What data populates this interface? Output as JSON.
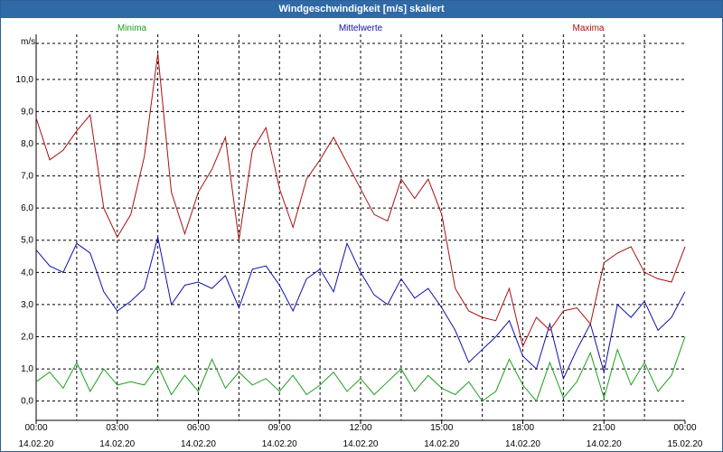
{
  "window": {
    "title": "Windgeschwindigkeit [m/s] skaliert"
  },
  "colors": {
    "min": "#1fa01f",
    "mean": "#1010a8",
    "max": "#a81010",
    "grid": "#000000",
    "title_bg": "#2f6aa6"
  },
  "chart_data": {
    "type": "line",
    "title": "Windgeschwindigkeit [m/s] skaliert",
    "ylabel": "m/s",
    "xlabel": "",
    "ylim": [
      -0.6,
      11.4
    ],
    "xlim": [
      0,
      24
    ],
    "y_ticks": [
      0,
      1,
      2,
      3,
      4,
      5,
      6,
      7,
      8,
      9,
      10
    ],
    "y_tick_labels": [
      "0,0",
      "1,0",
      "2,0",
      "3,0",
      "4,0",
      "5,0",
      "6,0",
      "7,0",
      "8,0",
      "9,0",
      "10,0"
    ],
    "x_ticks": [
      0,
      3,
      6,
      9,
      12,
      15,
      18,
      21,
      24
    ],
    "x_tick_times": [
      "00:00",
      "03:00",
      "06:00",
      "09:00",
      "12:00",
      "15:00",
      "18:00",
      "21:00",
      "00:00"
    ],
    "x_tick_dates": [
      "14.02.20",
      "14.02.20",
      "14.02.20",
      "14.02.20",
      "14.02.20",
      "14.02.20",
      "14.02.20",
      "14.02.20",
      "15.02.20"
    ],
    "grid": true,
    "legend_position": "top",
    "series": [
      {
        "name": "Minima",
        "color": "#1fa01f",
        "x": [
          0,
          0.5,
          1,
          1.5,
          2,
          2.5,
          3,
          3.5,
          4,
          4.5,
          5,
          5.5,
          6,
          6.5,
          7,
          7.5,
          8,
          8.5,
          9,
          9.5,
          10,
          10.5,
          11,
          11.5,
          12,
          12.5,
          13,
          13.5,
          14,
          14.5,
          15,
          15.5,
          16,
          16.5,
          17,
          17.5,
          18,
          18.5,
          19,
          19.5,
          20,
          20.5,
          21,
          21.5,
          22,
          22.5,
          23,
          23.5,
          24
        ],
        "values": [
          0.6,
          0.9,
          0.4,
          1.2,
          0.3,
          1.0,
          0.5,
          0.6,
          0.5,
          1.1,
          0.2,
          0.8,
          0.3,
          1.3,
          0.4,
          0.9,
          0.5,
          0.7,
          0.3,
          0.8,
          0.2,
          0.5,
          0.9,
          0.3,
          0.7,
          0.2,
          0.6,
          1.0,
          0.3,
          0.8,
          0.4,
          0.2,
          0.6,
          0.0,
          0.3,
          1.3,
          0.5,
          0.0,
          1.2,
          0.1,
          0.6,
          1.5,
          0.1,
          1.6,
          0.5,
          1.2,
          0.3,
          0.8,
          2.0
        ]
      },
      {
        "name": "Mittelwerte",
        "color": "#1010a8",
        "x": [
          0,
          0.5,
          1,
          1.5,
          2,
          2.5,
          3,
          3.5,
          4,
          4.5,
          5,
          5.5,
          6,
          6.5,
          7,
          7.5,
          8,
          8.5,
          9,
          9.5,
          10,
          10.5,
          11,
          11.5,
          12,
          12.5,
          13,
          13.5,
          14,
          14.5,
          15,
          15.5,
          16,
          16.5,
          17,
          17.5,
          18,
          18.5,
          19,
          19.5,
          20,
          20.5,
          21,
          21.5,
          22,
          22.5,
          23,
          23.5,
          24
        ],
        "values": [
          4.7,
          4.2,
          4.0,
          4.9,
          4.6,
          3.4,
          2.8,
          3.1,
          3.5,
          5.1,
          3.0,
          3.6,
          3.7,
          3.5,
          3.9,
          2.9,
          4.1,
          4.2,
          3.6,
          2.8,
          3.8,
          4.1,
          3.4,
          4.9,
          4.0,
          3.3,
          3.0,
          3.8,
          3.2,
          3.5,
          2.9,
          2.2,
          1.2,
          1.6,
          2.0,
          2.5,
          1.4,
          1.0,
          2.4,
          0.7,
          1.6,
          2.4,
          0.9,
          3.0,
          2.6,
          3.1,
          2.2,
          2.6,
          3.4
        ]
      },
      {
        "name": "Maxima",
        "color": "#a81010",
        "x": [
          0,
          0.5,
          1,
          1.5,
          2,
          2.5,
          3,
          3.5,
          4,
          4.5,
          5,
          5.5,
          6,
          6.5,
          7,
          7.5,
          8,
          8.5,
          9,
          9.5,
          10,
          10.5,
          11,
          11.5,
          12,
          12.5,
          13,
          13.5,
          14,
          14.5,
          15,
          15.5,
          16,
          16.5,
          17,
          17.5,
          18,
          18.5,
          19,
          19.5,
          20,
          20.5,
          21,
          21.5,
          22,
          22.5,
          23,
          23.5,
          24
        ],
        "values": [
          8.8,
          7.5,
          7.8,
          8.4,
          8.9,
          6.0,
          5.1,
          5.8,
          7.6,
          10.8,
          6.5,
          5.2,
          6.5,
          7.2,
          8.2,
          5.0,
          7.8,
          8.5,
          6.6,
          5.4,
          6.9,
          7.5,
          8.2,
          7.4,
          6.6,
          5.8,
          5.6,
          6.9,
          6.3,
          6.9,
          5.8,
          3.5,
          2.8,
          2.6,
          2.5,
          3.5,
          1.7,
          2.6,
          2.2,
          2.8,
          2.9,
          2.4,
          4.3,
          4.6,
          4.8,
          4.0,
          3.8,
          3.7,
          4.8
        ]
      }
    ]
  }
}
